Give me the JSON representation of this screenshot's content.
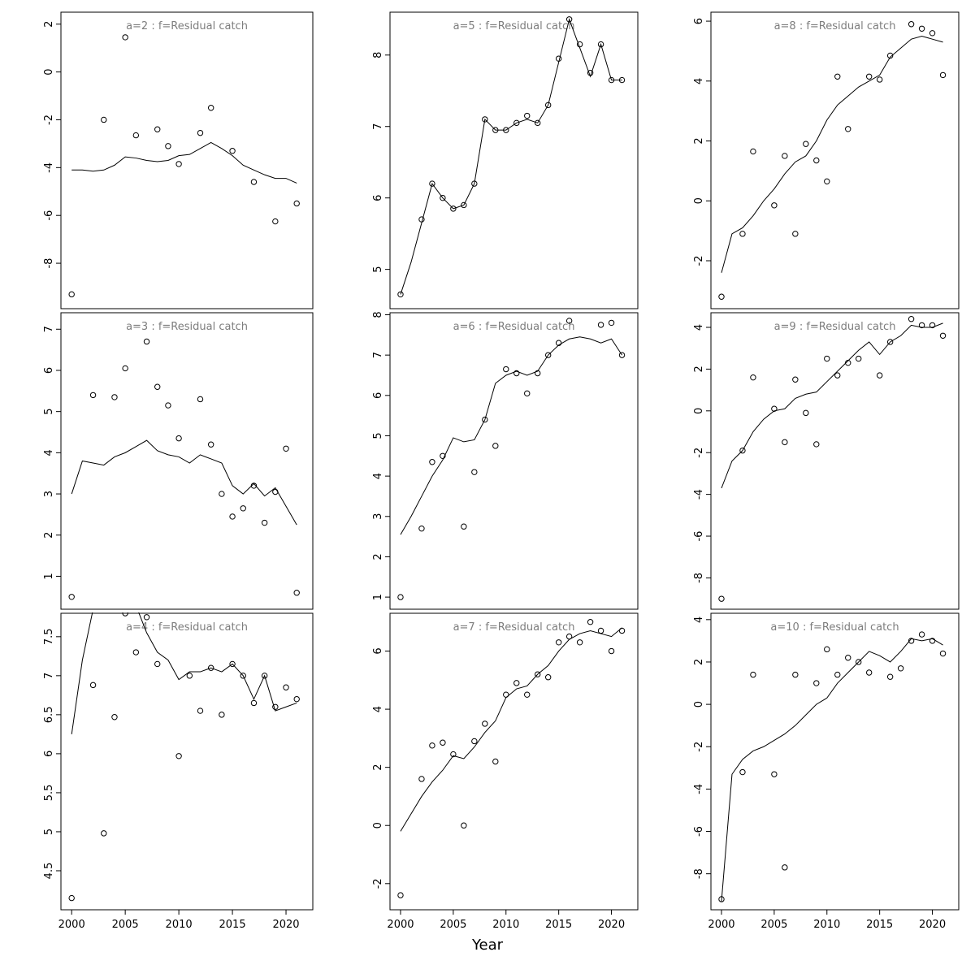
{
  "shared": {
    "xlabel": "Year",
    "xlim": [
      1999,
      2022.5
    ],
    "xticks": [
      2000,
      2005,
      2010,
      2015,
      2020
    ],
    "line_color": "#000000",
    "point_color": "#000000",
    "title_color": "#7d7d7d",
    "axis_color": "#000000",
    "background": "#ffffff"
  },
  "chart_data": [
    {
      "type": "scatter",
      "id": "a2",
      "title": "a=2 : f=Residual catch",
      "row": 0,
      "col": 0,
      "ylim": [
        -9.9,
        2.5
      ],
      "yticks": [
        2,
        0,
        -2,
        -4,
        -6,
        -8
      ],
      "points": {
        "x": [
          2000,
          2003,
          2005,
          2006,
          2008,
          2009,
          2010,
          2012,
          2013,
          2015,
          2017,
          2019,
          2021
        ],
        "y": [
          -9.3,
          -2.0,
          1.45,
          -2.65,
          -2.4,
          -3.1,
          -3.85,
          -2.55,
          -1.5,
          -3.3,
          -4.6,
          -6.25,
          -5.5
        ]
      },
      "line": {
        "x_start": 2000,
        "x_step": 1,
        "y": [
          -4.1,
          -4.1,
          -4.15,
          -4.1,
          -3.9,
          -3.55,
          -3.6,
          -3.7,
          -3.75,
          -3.7,
          -3.5,
          -3.45,
          -3.2,
          -2.95,
          -3.2,
          -3.5,
          -3.9,
          -4.1,
          -4.3,
          -4.45,
          -4.45,
          -4.65
        ]
      }
    },
    {
      "type": "scatter",
      "id": "a5",
      "title": "a=5 : f=Residual catch",
      "row": 0,
      "col": 1,
      "ylim": [
        4.45,
        8.6
      ],
      "yticks": [
        5,
        6,
        7,
        8
      ],
      "points": {
        "x": [
          2000,
          2002,
          2003,
          2004,
          2005,
          2006,
          2007,
          2008,
          2009,
          2010,
          2011,
          2012,
          2013,
          2014,
          2015,
          2016,
          2017,
          2018,
          2019,
          2020,
          2021
        ],
        "y": [
          4.65,
          5.7,
          6.2,
          6.0,
          5.85,
          5.9,
          6.2,
          7.1,
          6.95,
          6.95,
          7.05,
          7.15,
          7.05,
          7.3,
          7.95,
          8.5,
          8.15,
          7.75,
          8.15,
          7.65,
          7.65
        ]
      },
      "line": {
        "x_start": 2000,
        "x_step": 1,
        "y": [
          4.65,
          5.1,
          5.65,
          6.2,
          6.0,
          5.85,
          5.9,
          6.2,
          7.1,
          6.95,
          6.95,
          7.05,
          7.1,
          7.05,
          7.3,
          7.9,
          8.5,
          8.1,
          7.7,
          8.15,
          7.65,
          7.65
        ]
      }
    },
    {
      "type": "scatter",
      "id": "a8",
      "title": "a=8 : f=Residual catch",
      "row": 0,
      "col": 2,
      "ylim": [
        -3.6,
        6.3
      ],
      "yticks": [
        6,
        4,
        2,
        0,
        -2
      ],
      "points": {
        "x": [
          2000,
          2002,
          2003,
          2005,
          2006,
          2007,
          2008,
          2009,
          2010,
          2011,
          2012,
          2014,
          2015,
          2016,
          2018,
          2019,
          2020,
          2021
        ],
        "y": [
          -3.2,
          -1.1,
          1.65,
          -0.15,
          1.5,
          -1.1,
          1.9,
          1.35,
          0.65,
          4.15,
          2.4,
          4.15,
          4.05,
          4.85,
          5.9,
          5.75,
          5.6,
          4.2
        ]
      },
      "line": {
        "x_start": 2000,
        "x_step": 1,
        "y": [
          -2.4,
          -1.1,
          -0.9,
          -0.5,
          0.0,
          0.4,
          0.9,
          1.3,
          1.5,
          2.0,
          2.7,
          3.2,
          3.5,
          3.8,
          4.0,
          4.2,
          4.8,
          5.1,
          5.4,
          5.5,
          5.4,
          5.3
        ]
      }
    },
    {
      "type": "scatter",
      "id": "a3",
      "title": "a=3 : f=Residual catch",
      "row": 1,
      "col": 0,
      "ylim": [
        0.2,
        7.4
      ],
      "yticks": [
        7,
        6,
        5,
        4,
        3,
        2,
        1
      ],
      "points": {
        "x": [
          2000,
          2002,
          2004,
          2005,
          2007,
          2008,
          2009,
          2010,
          2012,
          2013,
          2014,
          2015,
          2016,
          2017,
          2018,
          2019,
          2020,
          2021
        ],
        "y": [
          0.5,
          5.4,
          5.35,
          6.05,
          6.7,
          5.6,
          5.15,
          4.35,
          5.3,
          4.2,
          3.0,
          2.45,
          2.65,
          3.2,
          2.3,
          3.05,
          4.1,
          0.6
        ]
      },
      "line": {
        "x_start": 2000,
        "x_step": 1,
        "y": [
          3.0,
          3.8,
          3.75,
          3.7,
          3.9,
          4.0,
          4.15,
          4.3,
          4.05,
          3.95,
          3.9,
          3.75,
          3.95,
          3.85,
          3.75,
          3.2,
          3.0,
          3.25,
          2.95,
          3.15,
          2.7,
          2.25
        ]
      }
    },
    {
      "type": "scatter",
      "id": "a6",
      "title": "a=6 : f=Residual catch",
      "row": 1,
      "col": 1,
      "ylim": [
        0.7,
        8.05
      ],
      "yticks": [
        8,
        7,
        6,
        5,
        4,
        3,
        2,
        1
      ],
      "points": {
        "x": [
          2000,
          2002,
          2003,
          2004,
          2006,
          2007,
          2008,
          2009,
          2010,
          2011,
          2012,
          2013,
          2014,
          2015,
          2016,
          2019,
          2020,
          2021
        ],
        "y": [
          1.0,
          2.7,
          4.35,
          4.5,
          2.75,
          4.1,
          5.4,
          4.75,
          6.65,
          6.55,
          6.05,
          6.55,
          7.0,
          7.3,
          7.85,
          7.75,
          7.8,
          7.0
        ]
      },
      "line": {
        "x_start": 2000,
        "x_step": 1,
        "y": [
          2.55,
          3.0,
          3.5,
          4.0,
          4.4,
          4.95,
          4.85,
          4.9,
          5.4,
          6.3,
          6.5,
          6.6,
          6.5,
          6.6,
          7.0,
          7.25,
          7.4,
          7.45,
          7.4,
          7.3,
          7.4,
          7.0
        ]
      }
    },
    {
      "type": "scatter",
      "id": "a9",
      "title": "a=9 : f=Residual catch",
      "row": 1,
      "col": 2,
      "ylim": [
        -9.5,
        4.7
      ],
      "yticks": [
        4,
        2,
        0,
        -2,
        -4,
        -6,
        -8
      ],
      "points": {
        "x": [
          2000,
          2002,
          2003,
          2005,
          2006,
          2007,
          2008,
          2009,
          2010,
          2011,
          2012,
          2013,
          2015,
          2016,
          2018,
          2019,
          2020,
          2021
        ],
        "y": [
          -9.0,
          -1.9,
          1.6,
          0.1,
          -1.5,
          1.5,
          -0.1,
          -1.6,
          2.5,
          1.7,
          2.3,
          2.5,
          1.7,
          3.3,
          4.4,
          4.1,
          4.1,
          3.6
        ]
      },
      "line": {
        "x_start": 2000,
        "x_step": 1,
        "y": [
          -3.7,
          -2.4,
          -1.9,
          -1.0,
          -0.4,
          0.0,
          0.1,
          0.6,
          0.8,
          0.9,
          1.4,
          1.9,
          2.4,
          2.9,
          3.3,
          2.7,
          3.3,
          3.6,
          4.1,
          4.0,
          4.0,
          4.2
        ]
      }
    },
    {
      "type": "scatter",
      "id": "a4",
      "title": "a=4 : f=Residual catch",
      "row": 2,
      "col": 0,
      "ylim": [
        4.0,
        7.8
      ],
      "yticks": [
        7.5,
        7.0,
        6.5,
        6.0,
        5.5,
        5.0,
        4.5
      ],
      "points": {
        "x": [
          2000,
          2002,
          2003,
          2004,
          2005,
          2006,
          2007,
          2008,
          2010,
          2011,
          2012,
          2013,
          2014,
          2015,
          2016,
          2017,
          2018,
          2019,
          2020,
          2021
        ],
        "y": [
          4.15,
          6.88,
          4.98,
          6.47,
          7.8,
          7.3,
          7.75,
          7.15,
          5.97,
          7.0,
          6.55,
          7.1,
          6.5,
          7.15,
          7.0,
          6.65,
          7.0,
          6.6,
          6.85,
          6.7
        ]
      },
      "line": {
        "x_start": 2000,
        "x_step": 1,
        "y": [
          6.25,
          7.2,
          7.85,
          8.0,
          8.05,
          8.0,
          7.9,
          7.55,
          7.3,
          7.2,
          6.95,
          7.05,
          7.05,
          7.1,
          7.05,
          7.15,
          7.0,
          6.7,
          7.0,
          6.55,
          6.6,
          6.65
        ]
      }
    },
    {
      "type": "scatter",
      "id": "a7",
      "title": "a=7 : f=Residual catch",
      "row": 2,
      "col": 1,
      "ylim": [
        -2.9,
        7.3
      ],
      "yticks": [
        6,
        4,
        2,
        0,
        -2
      ],
      "points": {
        "x": [
          2000,
          2002,
          2003,
          2004,
          2005,
          2006,
          2007,
          2008,
          2009,
          2010,
          2011,
          2012,
          2013,
          2014,
          2015,
          2016,
          2017,
          2018,
          2019,
          2020,
          2021
        ],
        "y": [
          -2.4,
          1.6,
          2.75,
          2.85,
          2.45,
          0.0,
          2.9,
          3.5,
          2.2,
          4.5,
          4.9,
          4.5,
          5.2,
          5.1,
          6.3,
          6.5,
          6.3,
          7.0,
          6.7,
          6.0,
          6.7
        ]
      },
      "line": {
        "x_start": 2000,
        "x_step": 1,
        "y": [
          -0.2,
          0.4,
          1.0,
          1.5,
          1.9,
          2.4,
          2.3,
          2.7,
          3.2,
          3.6,
          4.4,
          4.7,
          4.8,
          5.2,
          5.5,
          6.0,
          6.4,
          6.6,
          6.7,
          6.6,
          6.5,
          6.8
        ]
      }
    },
    {
      "type": "scatter",
      "id": "a10",
      "title": "a=10 : f=Residual catch",
      "row": 2,
      "col": 2,
      "ylim": [
        -9.7,
        4.3
      ],
      "yticks": [
        4,
        2,
        0,
        -2,
        -4,
        -6,
        -8
      ],
      "points": {
        "x": [
          2000,
          2002,
          2003,
          2005,
          2006,
          2007,
          2009,
          2010,
          2011,
          2012,
          2013,
          2014,
          2016,
          2017,
          2018,
          2019,
          2020,
          2021
        ],
        "y": [
          -9.2,
          -3.2,
          1.4,
          -3.3,
          -7.7,
          1.4,
          1.0,
          2.6,
          1.4,
          2.2,
          2.0,
          1.5,
          1.3,
          1.7,
          3.0,
          3.3,
          3.0,
          2.4
        ]
      },
      "line": {
        "x_start": 2000,
        "x_step": 1,
        "y": [
          -9.3,
          -3.3,
          -2.6,
          -2.2,
          -2.0,
          -1.7,
          -1.4,
          -1.0,
          -0.5,
          0.0,
          0.3,
          1.0,
          1.5,
          2.0,
          2.5,
          2.3,
          2.0,
          2.5,
          3.1,
          3.0,
          3.1,
          2.8
        ]
      }
    }
  ]
}
